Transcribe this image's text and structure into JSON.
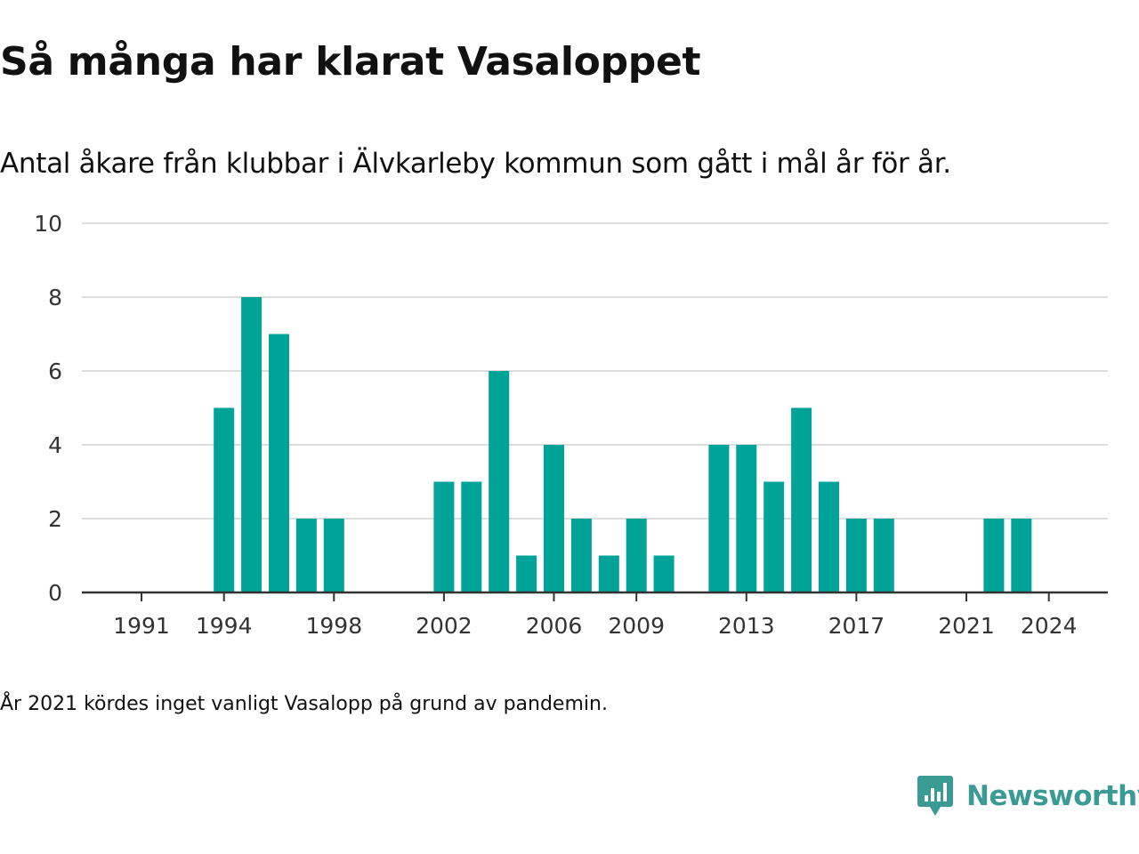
{
  "title": "Så många har klarat Vasaloppet",
  "subtitle": "Antal åkare från klubbar i Älvkarleby kommun som gått i mål år för år.",
  "note": "År 2021 kördes inget vanligt Vasalopp på grund av pandemin.",
  "brand": {
    "name": "Newsworthy",
    "icon": "newsworthy-logo-icon",
    "color": "#3a9a94"
  },
  "colors": {
    "bar": "#00a397",
    "grid": "#dddddd",
    "axis": "#333333"
  },
  "chart_data": {
    "type": "bar",
    "categories": [
      "1991",
      "1992",
      "1993",
      "1994",
      "1995",
      "1996",
      "1997",
      "1998",
      "1999",
      "2000",
      "2001",
      "2002",
      "2003",
      "2004",
      "2005",
      "2006",
      "2007",
      "2008",
      "2009",
      "2010",
      "2011",
      "2012",
      "2013",
      "2014",
      "2015",
      "2016",
      "2017",
      "2018",
      "2019",
      "2020",
      "2021",
      "2022",
      "2023",
      "2024"
    ],
    "values": [
      0,
      0,
      0,
      5,
      8,
      7,
      2,
      2,
      0,
      0,
      0,
      3,
      3,
      6,
      1,
      4,
      2,
      1,
      2,
      1,
      0,
      4,
      4,
      3,
      5,
      3,
      2,
      2,
      0,
      0,
      0,
      2,
      2,
      0
    ],
    "x_tick_labels": [
      "1991",
      "1994",
      "1998",
      "2002",
      "2006",
      "2009",
      "2013",
      "2017",
      "2021",
      "2024"
    ],
    "y_ticks": [
      0,
      2,
      4,
      6,
      8,
      10
    ],
    "ylim": [
      0,
      10
    ],
    "grid": true
  }
}
